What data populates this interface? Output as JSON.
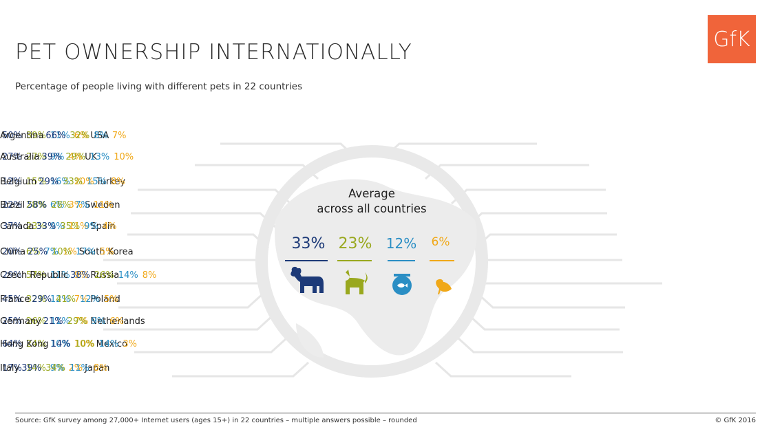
{
  "header": {
    "title": "PET OWNERSHIP INTERNATIONALLY",
    "subtitle": "Percentage of people living with different pets in 22 countries",
    "logo_text": "GfK"
  },
  "average": {
    "title_line1": "Average",
    "title_line2": "across all countries",
    "dog": "33%",
    "cat": "23%",
    "fish": "12%",
    "bird": "6%"
  },
  "colors": {
    "dog": "#1d3a78",
    "cat": "#99a81e",
    "fish": "#2a8ec4",
    "bird": "#f0a818",
    "globe": "#e9e9e9",
    "logo": "#f0643a"
  },
  "icons": [
    "dog-icon",
    "cat-icon",
    "fish-bowl-icon",
    "bird-icon"
  ],
  "chart_data": {
    "type": "table",
    "columns": [
      "Dog",
      "Cat",
      "Fish",
      "Bird"
    ],
    "left": [
      {
        "country": "USA",
        "values": [
          "50%",
          "39%",
          "11%",
          "6%"
        ]
      },
      {
        "country": "UK",
        "values": [
          "27%",
          "27%",
          "9%",
          "4%"
        ]
      },
      {
        "country": "Turkey",
        "values": [
          "12%",
          "15%",
          "16%",
          "20%"
        ]
      },
      {
        "country": "Sweden",
        "values": [
          "22%",
          "28%",
          "6%",
          "3%"
        ]
      },
      {
        "country": "Spain",
        "values": [
          "37%",
          "23%",
          "9%",
          "11%"
        ]
      },
      {
        "country": "South Korea",
        "values": [
          "20%",
          "6%",
          "7%",
          "1%"
        ]
      },
      {
        "country": "Russia",
        "values": [
          "29%",
          "57%",
          "11%",
          "9%"
        ]
      },
      {
        "country": "Poland",
        "values": [
          "45%",
          "32%",
          "12%",
          "7%"
        ]
      },
      {
        "country": "Netherlands",
        "values": [
          "25%",
          "26%",
          "11%",
          "7%"
        ]
      },
      {
        "country": "Mexico",
        "values": [
          "64%",
          "24%",
          "10%",
          "10%"
        ]
      },
      {
        "country": "Japan",
        "values": [
          "17%",
          "14%",
          "9%",
          "2%"
        ]
      }
    ],
    "right": [
      {
        "country": "Argentina",
        "values": [
          "66%",
          "32%",
          "8%",
          "7%"
        ]
      },
      {
        "country": "Australia",
        "values": [
          "39%",
          "29%",
          "13%",
          "10%"
        ]
      },
      {
        "country": "Belgium",
        "values": [
          "29%",
          "33%",
          "15%",
          "8%"
        ]
      },
      {
        "country": "Brazil",
        "values": [
          "58%",
          "28%",
          "7%",
          "11%"
        ]
      },
      {
        "country": "Canada",
        "values": [
          "33%",
          "35%",
          "9%",
          "4%"
        ]
      },
      {
        "country": "China",
        "values": [
          "25%",
          "10%",
          "17%",
          "5%"
        ]
      },
      {
        "country": "Czech Republic",
        "values": [
          "38%",
          "26%",
          "14%",
          "8%"
        ]
      },
      {
        "country": "France",
        "values": [
          "29%",
          "41%",
          "12%",
          "5%"
        ]
      },
      {
        "country": "Germany",
        "values": [
          "21%",
          "29%",
          "9%",
          "6%"
        ]
      },
      {
        "country": "Hong Kong",
        "values": [
          "14%",
          "10%",
          "14%",
          "3%"
        ]
      },
      {
        "country": "Italy",
        "values": [
          "39%",
          "34%",
          "11%",
          "8%"
        ]
      }
    ]
  },
  "footer": {
    "source": "Source:  GfK survey among 27,000+ Internet users (ages 15+) in 22 countries – multiple answers possible – rounded",
    "copyright": "© GfK 2016"
  }
}
